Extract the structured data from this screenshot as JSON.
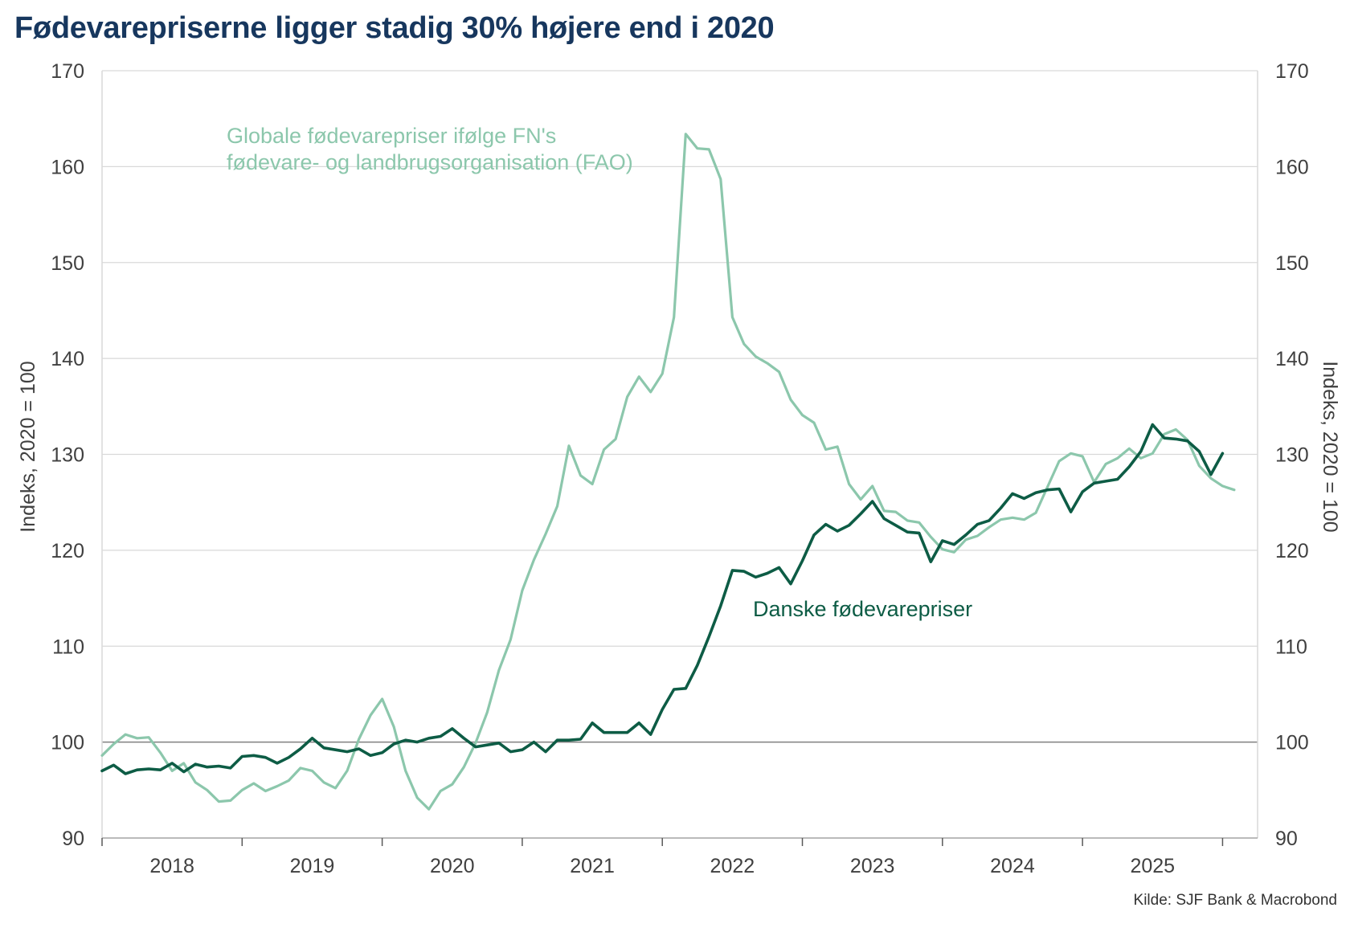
{
  "title": "Fødevarepriserne ligger stadig 30% højere end i 2020",
  "source": "Kilde: SJF Bank & Macrobond",
  "chart_data": {
    "type": "line",
    "title": "Fødevarepriserne ligger stadig 30% højere end i 2020",
    "ylabel_left": "Indeks, 2020 = 100",
    "ylabel_right": "Indeks, 2020 = 100",
    "ylim": [
      90,
      170
    ],
    "yticks": [
      90,
      100,
      110,
      120,
      130,
      140,
      150,
      160,
      170
    ],
    "reference_line": 100,
    "xlim": [
      "2018-01",
      "2026-04"
    ],
    "x_tick_labels": [
      "2018",
      "2019",
      "2020",
      "2021",
      "2022",
      "2023",
      "2024",
      "2025"
    ],
    "grid": "horizontal",
    "series": [
      {
        "name": "Globale fødevarepriser ifølge FN's fødevare- og landbrugsorganisation (FAO)",
        "label_lines": [
          "Globale fødevarepriser ifølge FN's",
          "fødevare- og landbrugsorganisation (FAO)"
        ],
        "color": "#8cc7ac",
        "start": "2018-01",
        "values": [
          98.6,
          99.8,
          100.8,
          100.4,
          100.5,
          98.9,
          97.0,
          97.8,
          95.8,
          95.0,
          93.8,
          93.9,
          95.0,
          95.7,
          94.9,
          95.4,
          96.0,
          97.3,
          97.0,
          95.8,
          95.2,
          97.0,
          100.3,
          102.8,
          104.5,
          101.6,
          97.0,
          94.2,
          93.0,
          94.9,
          95.6,
          97.4,
          99.9,
          103.1,
          107.5,
          110.7,
          115.8,
          119.0,
          121.7,
          124.6,
          130.9,
          127.8,
          126.9,
          130.5,
          131.6,
          136.0,
          138.1,
          136.5,
          138.4,
          144.3,
          163.4,
          161.9,
          161.8,
          158.7,
          144.3,
          141.5,
          140.2,
          139.5,
          138.6,
          135.7,
          134.1,
          133.3,
          130.5,
          130.8,
          126.9,
          125.3,
          126.7,
          124.1,
          124.0,
          123.1,
          122.9,
          121.4,
          120.1,
          119.8,
          121.1,
          121.5,
          122.4,
          123.2,
          123.4,
          123.2,
          123.9,
          126.6,
          129.3,
          130.1,
          129.8,
          127.1,
          129.0,
          129.6,
          130.6,
          129.6,
          130.1,
          132.1,
          132.6,
          131.5,
          128.8,
          127.5,
          126.7,
          126.3
        ]
      },
      {
        "name": "Danske fødevarepriser",
        "label_lines": [
          "Danske fødevarepriser"
        ],
        "color": "#0d5c45",
        "start": "2018-01",
        "values": [
          97.0,
          97.6,
          96.7,
          97.1,
          97.2,
          97.1,
          97.8,
          96.9,
          97.7,
          97.4,
          97.5,
          97.3,
          98.5,
          98.6,
          98.4,
          97.8,
          98.4,
          99.3,
          100.4,
          99.4,
          99.2,
          99.0,
          99.3,
          98.6,
          98.9,
          99.8,
          100.2,
          100.0,
          100.4,
          100.6,
          101.4,
          100.4,
          99.5,
          99.7,
          99.9,
          99.0,
          99.2,
          100.0,
          99.0,
          100.2,
          100.2,
          100.3,
          102.0,
          101.0,
          101.0,
          101.0,
          102.0,
          100.8,
          103.4,
          105.5,
          105.6,
          108.0,
          111.0,
          114.2,
          117.9,
          117.8,
          117.2,
          117.6,
          118.2,
          116.5,
          118.9,
          121.6,
          122.7,
          122.0,
          122.6,
          123.8,
          125.1,
          123.3,
          122.6,
          121.9,
          121.8,
          118.8,
          121.0,
          120.6,
          121.6,
          122.7,
          123.1,
          124.4,
          125.9,
          125.4,
          126.0,
          126.3,
          126.4,
          124.0,
          126.1,
          127.0,
          127.2,
          127.4,
          128.7,
          130.3,
          133.1,
          131.7,
          131.6,
          131.4,
          130.3,
          127.9,
          130.1
        ]
      }
    ]
  }
}
